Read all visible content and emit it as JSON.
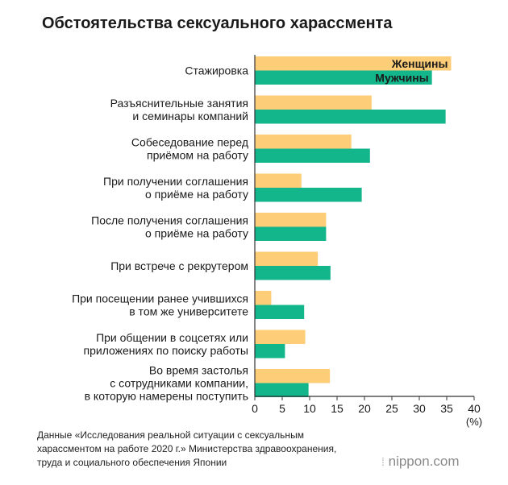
{
  "title": "Обстоятельства сексуального харассмента",
  "footer": {
    "source_lines": [
      "Данные «Исследования реальной ситуации с сексуальным",
      "харассментом на работе 2020 г.» Министерства здравоохранения,",
      "труда и социального обеспечения Японии"
    ],
    "logo_text": "nippon.com",
    "logo_icon": "dots-icon"
  },
  "colors": {
    "women": "#fdcd78",
    "men": "#13b58b",
    "axis": "#333333",
    "grid": "#dddddd",
    "text": "#1a1a1a"
  },
  "chart_data": {
    "type": "bar",
    "orientation": "horizontal",
    "title": "Обстоятельства сексуального харассмента",
    "categories": [
      [
        "Стажировка"
      ],
      [
        "Разъяснительные занятия",
        "и семинары компаний"
      ],
      [
        "Собеседование перед",
        "приёмом на работу"
      ],
      [
        "При получении соглашения",
        "о приёме на работу"
      ],
      [
        "После получения соглашения",
        "о приёме на работу"
      ],
      [
        "При встрече с рекрутером"
      ],
      [
        "При посещении ранее учившихся",
        "в том же университете"
      ],
      [
        "При общении в соцсетях или",
        "приложениях по поиску работы"
      ],
      [
        "Во время застолья",
        "с сотрудниками компании,",
        "в которую намерены поступить"
      ]
    ],
    "series": [
      {
        "name": "Женщины",
        "values": [
          35.8,
          21.3,
          17.6,
          8.5,
          13.0,
          11.5,
          3.0,
          9.2,
          13.7
        ]
      },
      {
        "name": "Мужчины",
        "values": [
          32.3,
          34.8,
          21.0,
          19.5,
          13.0,
          13.8,
          9.0,
          5.5,
          9.8
        ]
      }
    ],
    "xlim": [
      0,
      40
    ],
    "xticks": [
      0,
      5,
      10,
      15,
      20,
      25,
      30,
      35,
      40
    ],
    "xlabel": "(%)",
    "legend": "inside-bars"
  }
}
